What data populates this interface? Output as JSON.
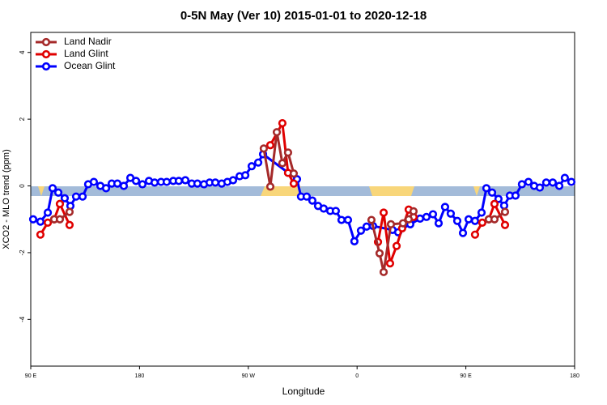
{
  "chart_data": {
    "type": "line",
    "title": "0-5N May (Ver 10)   2015-01-01 to 2020-12-18",
    "xlabel": "Longitude",
    "ylabel": "XCO2 - MLO trend (ppm)",
    "xlim": [
      90,
      540
    ],
    "ylim": [
      -5.4,
      4.6
    ],
    "xticks": [
      {
        "value": 90,
        "label": "90 E"
      },
      {
        "value": 180,
        "label": "180"
      },
      {
        "value": 270,
        "label": "90 W"
      },
      {
        "value": 360,
        "label": "0"
      },
      {
        "value": 450,
        "label": "90 E"
      },
      {
        "value": 540,
        "label": "180"
      }
    ],
    "yticks": [
      -4,
      -2,
      0,
      2,
      4
    ],
    "grid": false,
    "legend": "top-left",
    "series": [
      {
        "name": "Land Nadir",
        "color": "#a52a2a",
        "x": [
          109.4,
          114.1,
          122.1,
          200,
          282.8,
          288.2,
          293.6,
          298.2,
          302.9,
          307.6,
          340,
          371.9,
          378.6,
          382.0,
          388.0,
          398.0,
          402.7,
          406.7,
          440,
          469.0,
          473.7,
          482.4
        ],
        "values": [
          -1.0,
          -1.0,
          -0.78,
          null,
          1.12,
          -0.02,
          1.61,
          0.68,
          1.0,
          0.37,
          null,
          -1.02,
          -2.02,
          -2.58,
          -1.15,
          -1.12,
          -1.0,
          -0.76,
          null,
          -1.0,
          -1.0,
          -0.78
        ]
      },
      {
        "name": "Land Glint",
        "color": "#e00000",
        "x": [
          98.0,
          104.1,
          109.4,
          114.1,
          122.1,
          200,
          288.2,
          298.2,
          302.9,
          307.6,
          340,
          377.3,
          382.0,
          387.3,
          392.7,
          397.3,
          402.7,
          406.7,
          440,
          457.6,
          463.6,
          469.0,
          473.7,
          482.4
        ],
        "values": [
          -1.46,
          -1.1,
          -1.0,
          -0.54,
          -1.17,
          null,
          1.22,
          1.88,
          0.39,
          0.07,
          null,
          -1.68,
          -0.8,
          -2.32,
          -1.8,
          -1.27,
          -0.71,
          -0.93,
          null,
          -1.46,
          -1.1,
          -1.0,
          -0.54,
          -1.17
        ]
      },
      {
        "name": "Ocean Glint",
        "color": "#0000ff",
        "x": [
          92.0,
          98.0,
          104.1,
          108.1,
          112.8,
          118.1,
          122.8,
          127.5,
          132.9,
          137.5,
          142.2,
          147.6,
          152.3,
          157.0,
          161.7,
          167.0,
          172.4,
          177.1,
          182.4,
          187.8,
          192.5,
          197.8,
          202.5,
          207.9,
          212.5,
          217.9,
          223.2,
          227.9,
          233.3,
          238.0,
          242.7,
          248.0,
          252.7,
          257.4,
          262.8,
          267.5,
          272.8,
          278.2,
          282.2,
          310.3,
          313.6,
          318.3,
          323.0,
          327.7,
          332.4,
          337.8,
          342.4,
          347.1,
          352.5,
          357.8,
          363.2,
          367.9,
          373.2,
          389.3,
          394.0,
          399.3,
          404.0,
          412.1,
          417.4,
          422.8,
          427.5,
          432.8,
          437.5,
          442.9,
          447.6,
          452.3,
          457.6,
          463.0,
          467.0,
          471.7,
          477.0,
          481.7,
          486.4,
          491.1,
          496.4,
          501.8,
          506.5,
          511.2,
          516.5,
          521.9,
          527.3,
          531.9,
          537.3
        ],
        "values": [
          -1.0,
          -1.07,
          -0.8,
          -0.07,
          -0.2,
          -0.37,
          -0.6,
          -0.32,
          -0.32,
          0.05,
          0.12,
          0.0,
          -0.07,
          0.07,
          0.07,
          0.0,
          0.24,
          0.15,
          0.05,
          0.15,
          0.1,
          0.12,
          0.12,
          0.15,
          0.15,
          0.17,
          0.07,
          0.07,
          0.05,
          0.1,
          0.1,
          0.07,
          0.12,
          0.17,
          0.29,
          0.32,
          0.59,
          0.7,
          0.95,
          0.2,
          -0.32,
          -0.32,
          -0.44,
          -0.6,
          -0.68,
          -0.75,
          -0.75,
          -1.02,
          -1.02,
          -1.66,
          -1.34,
          -1.22,
          -1.2,
          -1.32,
          -1.39,
          -1.15,
          -1.15,
          -0.98,
          -0.93,
          -0.85,
          -1.12,
          -0.63,
          -0.83,
          -1.05,
          -1.41,
          -1.0,
          -1.05,
          -0.8,
          -0.07,
          -0.2,
          -0.39,
          -0.59,
          -0.29,
          -0.29,
          0.05,
          0.12,
          0.0,
          -0.05,
          0.1,
          0.1,
          0.0,
          0.24,
          0.12
        ]
      }
    ]
  }
}
